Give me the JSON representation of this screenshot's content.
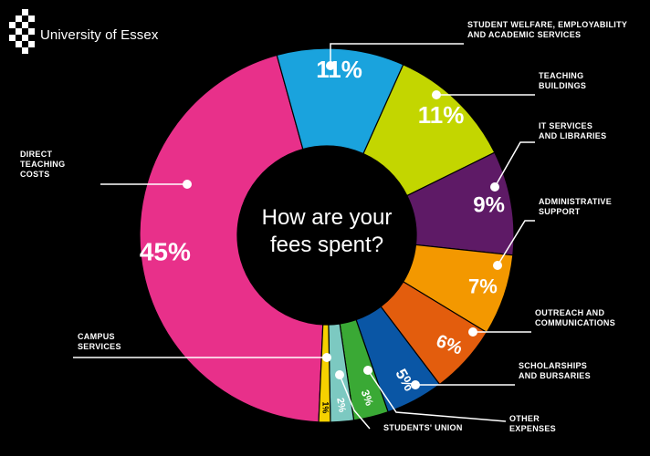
{
  "brand": {
    "name": "University of Essex"
  },
  "chart_data": {
    "type": "pie",
    "donut": true,
    "center_text": [
      "How are your",
      "fees spent?"
    ],
    "slices": [
      {
        "label_lines": [
          "DIRECT",
          "TEACHING",
          "COSTS"
        ],
        "value": 45,
        "pct_label": "45%",
        "color": "#e8308a"
      },
      {
        "label_lines": [
          "STUDENT WELFARE, EMPLOYABILITY",
          "AND ACADEMIC SERVICES"
        ],
        "value": 11,
        "pct_label": "11%",
        "color": "#1aa3dd"
      },
      {
        "label_lines": [
          "TEACHING",
          "BUILDINGS"
        ],
        "value": 11,
        "pct_label": "11%",
        "color": "#c3d600"
      },
      {
        "label_lines": [
          "IT SERVICES",
          "AND LIBRARIES"
        ],
        "value": 9,
        "pct_label": "9%",
        "color": "#5e1a66"
      },
      {
        "label_lines": [
          "ADMINISTRATIVE",
          "SUPPORT"
        ],
        "value": 7,
        "pct_label": "7%",
        "color": "#f39800"
      },
      {
        "label_lines": [
          "OUTREACH AND",
          "COMMUNICATIONS"
        ],
        "value": 6,
        "pct_label": "6%",
        "color": "#e35d0d"
      },
      {
        "label_lines": [
          "SCHOLARSHIPS",
          "AND BURSARIES"
        ],
        "value": 5,
        "pct_label": "5%",
        "color": "#0a56a5"
      },
      {
        "label_lines": [
          "OTHER",
          "EXPENSES"
        ],
        "value": 3,
        "pct_label": "3%",
        "color": "#3aa935"
      },
      {
        "label_lines": [
          "STUDENTS' UNION"
        ],
        "value": 2,
        "pct_label": "2%",
        "color": "#7cc9c1"
      },
      {
        "label_lines": [
          "CAMPUS",
          "SERVICES"
        ],
        "value": 1,
        "pct_label": "1%",
        "color": "#f6d100"
      }
    ]
  }
}
